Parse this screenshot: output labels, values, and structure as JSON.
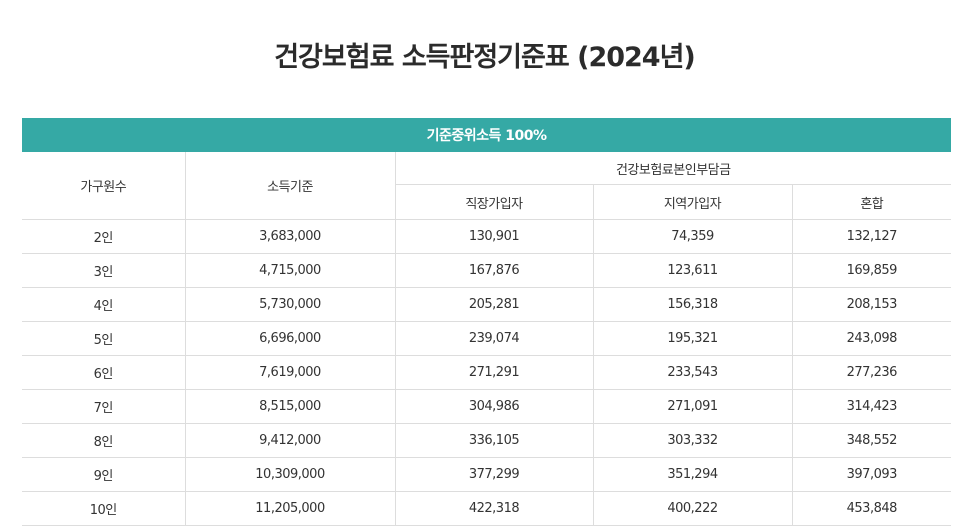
{
  "title": "건강보험료 소득판정기준표 (2024년)",
  "table": {
    "banner": "기준중위소득 100%",
    "headers": {
      "household": "가구원수",
      "income": "소득기준",
      "premium_group": "건강보험료본인부담금",
      "workplace": "직장가입자",
      "regional": "지역가입자",
      "mixed": "혼합"
    },
    "rows": [
      {
        "size": "2인",
        "income": "3,683,000",
        "workplace": "130,901",
        "regional": "74,359",
        "mixed": "132,127"
      },
      {
        "size": "3인",
        "income": "4,715,000",
        "workplace": "167,876",
        "regional": "123,611",
        "mixed": "169,859"
      },
      {
        "size": "4인",
        "income": "5,730,000",
        "workplace": "205,281",
        "regional": "156,318",
        "mixed": "208,153"
      },
      {
        "size": "5인",
        "income": "6,696,000",
        "workplace": "239,074",
        "regional": "195,321",
        "mixed": "243,098"
      },
      {
        "size": "6인",
        "income": "7,619,000",
        "workplace": "271,291",
        "regional": "233,543",
        "mixed": "277,236"
      },
      {
        "size": "7인",
        "income": "8,515,000",
        "workplace": "304,986",
        "regional": "271,091",
        "mixed": "314,423"
      },
      {
        "size": "8인",
        "income": "9,412,000",
        "workplace": "336,105",
        "regional": "303,332",
        "mixed": "348,552"
      },
      {
        "size": "9인",
        "income": "10,309,000",
        "workplace": "377,299",
        "regional": "351,294",
        "mixed": "397,093"
      },
      {
        "size": "10인",
        "income": "11,205,000",
        "workplace": "422,318",
        "regional": "400,222",
        "mixed": "453,848"
      }
    ]
  },
  "colors": {
    "banner_bg": "#35a9a5",
    "banner_text": "#ffffff",
    "border": "#dddddd",
    "text": "#333333"
  }
}
